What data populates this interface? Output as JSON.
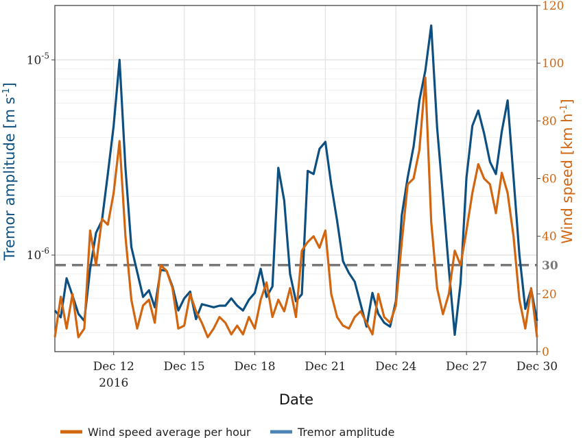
{
  "chart_data": {
    "type": "line",
    "xlabel": "Date",
    "ylabel_left_base": "Tremor amplitude [m s",
    "ylabel_left_exp": "-1",
    "ylabel_left_end": "]",
    "ylabel_right_base": "Wind speed [km h",
    "ylabel_right_exp": "-1",
    "ylabel_right_end": "]",
    "x_range": [
      "2016-12-09T12:00",
      "2016-12-30T00:00"
    ],
    "x_ticks": [
      {
        "date": "2016-12-12",
        "label": "Dec 12",
        "sublabel": "2016"
      },
      {
        "date": "2016-12-15",
        "label": "Dec 15",
        "sublabel": ""
      },
      {
        "date": "2016-12-18",
        "label": "Dec 18",
        "sublabel": ""
      },
      {
        "date": "2016-12-21",
        "label": "Dec 21",
        "sublabel": ""
      },
      {
        "date": "2016-12-24",
        "label": "Dec 24",
        "sublabel": ""
      },
      {
        "date": "2016-12-27",
        "label": "Dec 27",
        "sublabel": ""
      },
      {
        "date": "2016-12-30",
        "label": "Dec 30",
        "sublabel": ""
      }
    ],
    "left_axis": {
      "scale": "log",
      "range": [
        3.2e-07,
        1.9e-05
      ],
      "ticks": [
        {
          "value": 1e-06,
          "mantissa": "10",
          "exp": "-6"
        },
        {
          "value": 1e-05,
          "mantissa": "10",
          "exp": "-5"
        }
      ]
    },
    "right_axis": {
      "scale": "linear",
      "range": [
        0,
        120
      ],
      "ticks": [
        0,
        20,
        40,
        60,
        80,
        100,
        120
      ]
    },
    "threshold": {
      "value": 30,
      "label": "30",
      "color": "#777777"
    },
    "colors": {
      "tremor": "#0d4f80",
      "wind": "#d2650f",
      "tremor_legend": "#4a82b4",
      "axis_left": "#0d4f80",
      "axis_right": "#d2650f"
    },
    "series": [
      {
        "name": "Tremor amplitude",
        "axis": "left",
        "x": [
          "2016-12-09T12:00",
          "2016-12-09T18:00",
          "2016-12-10T00:00",
          "2016-12-10T06:00",
          "2016-12-10T12:00",
          "2016-12-10T18:00",
          "2016-12-11T00:00",
          "2016-12-11T06:00",
          "2016-12-11T12:00",
          "2016-12-11T18:00",
          "2016-12-12T00:00",
          "2016-12-12T06:00",
          "2016-12-12T12:00",
          "2016-12-12T18:00",
          "2016-12-13T00:00",
          "2016-12-13T06:00",
          "2016-12-13T12:00",
          "2016-12-13T18:00",
          "2016-12-14T00:00",
          "2016-12-14T06:00",
          "2016-12-14T12:00",
          "2016-12-14T18:00",
          "2016-12-15T00:00",
          "2016-12-15T06:00",
          "2016-12-15T12:00",
          "2016-12-15T18:00",
          "2016-12-16T00:00",
          "2016-12-16T06:00",
          "2016-12-16T12:00",
          "2016-12-16T18:00",
          "2016-12-17T00:00",
          "2016-12-17T06:00",
          "2016-12-17T12:00",
          "2016-12-17T18:00",
          "2016-12-18T00:00",
          "2016-12-18T06:00",
          "2016-12-18T12:00",
          "2016-12-18T18:00",
          "2016-12-19T00:00",
          "2016-12-19T06:00",
          "2016-12-19T12:00",
          "2016-12-19T18:00",
          "2016-12-20T00:00",
          "2016-12-20T06:00",
          "2016-12-20T12:00",
          "2016-12-20T18:00",
          "2016-12-21T00:00",
          "2016-12-21T06:00",
          "2016-12-21T12:00",
          "2016-12-21T18:00",
          "2016-12-22T00:00",
          "2016-12-22T06:00",
          "2016-12-22T12:00",
          "2016-12-22T18:00",
          "2016-12-23T00:00",
          "2016-12-23T06:00",
          "2016-12-23T12:00",
          "2016-12-23T18:00",
          "2016-12-24T00:00",
          "2016-12-24T06:00",
          "2016-12-24T12:00",
          "2016-12-24T18:00",
          "2016-12-25T00:00",
          "2016-12-25T06:00",
          "2016-12-25T12:00",
          "2016-12-25T18:00",
          "2016-12-26T00:00",
          "2016-12-26T06:00",
          "2016-12-26T12:00",
          "2016-12-26T18:00",
          "2016-12-27T00:00",
          "2016-12-27T06:00",
          "2016-12-27T12:00",
          "2016-12-27T18:00",
          "2016-12-28T00:00",
          "2016-12-28T06:00",
          "2016-12-28T12:00",
          "2016-12-28T18:00",
          "2016-12-29T00:00",
          "2016-12-29T06:00",
          "2016-12-29T12:00",
          "2016-12-29T18:00",
          "2016-12-30T00:00"
        ],
        "values": [
          5.2e-07,
          4.8e-07,
          7.6e-07,
          6.2e-07,
          5e-07,
          4.6e-07,
          8.5e-07,
          1.3e-06,
          1.5e-06,
          2.6e-06,
          4.6e-06,
          1e-05,
          2.8e-06,
          1.1e-06,
          8.2e-07,
          6.1e-07,
          6.6e-07,
          5.4e-07,
          8.4e-07,
          8.3e-07,
          6.9e-07,
          5.2e-07,
          6e-07,
          6.5e-07,
          4.7e-07,
          5.6e-07,
          5.5e-07,
          5.4e-07,
          5.5e-07,
          5.5e-07,
          6e-07,
          5.5e-07,
          5.2e-07,
          5.9e-07,
          6.4e-07,
          8.5e-07,
          6.1e-07,
          6.9e-07,
          2.8e-06,
          1.9e-06,
          8e-07,
          5.8e-07,
          6.3e-07,
          2.7e-06,
          2.6e-06,
          3.5e-06,
          3.8e-06,
          2.3e-06,
          1.5e-06,
          9.3e-07,
          8.1e-07,
          7.3e-07,
          5.6e-07,
          4.3e-07,
          6.4e-07,
          5e-07,
          4.5e-07,
          4.3e-07,
          5.8e-07,
          1.6e-06,
          2.5e-06,
          3.6e-06,
          6.2e-06,
          8.8e-06,
          1.5e-05,
          4.5e-06,
          2e-06,
          8.5e-07,
          3.9e-07,
          7.2e-07,
          2.5e-06,
          4.6e-06,
          5.5e-06,
          4.2e-06,
          3e-06,
          2.6e-06,
          4.3e-06,
          6.2e-06,
          2.5e-06,
          1e-06,
          5.3e-07,
          6.7e-07,
          4.6e-07
        ]
      },
      {
        "name": "Wind speed average per hour",
        "axis": "right",
        "x": [
          "2016-12-09T12:00",
          "2016-12-09T18:00",
          "2016-12-10T00:00",
          "2016-12-10T06:00",
          "2016-12-10T12:00",
          "2016-12-10T18:00",
          "2016-12-11T00:00",
          "2016-12-11T06:00",
          "2016-12-11T12:00",
          "2016-12-11T18:00",
          "2016-12-12T00:00",
          "2016-12-12T06:00",
          "2016-12-12T12:00",
          "2016-12-12T18:00",
          "2016-12-13T00:00",
          "2016-12-13T06:00",
          "2016-12-13T12:00",
          "2016-12-13T18:00",
          "2016-12-14T00:00",
          "2016-12-14T06:00",
          "2016-12-14T12:00",
          "2016-12-14T18:00",
          "2016-12-15T00:00",
          "2016-12-15T06:00",
          "2016-12-15T12:00",
          "2016-12-15T18:00",
          "2016-12-16T00:00",
          "2016-12-16T06:00",
          "2016-12-16T12:00",
          "2016-12-16T18:00",
          "2016-12-17T00:00",
          "2016-12-17T06:00",
          "2016-12-17T12:00",
          "2016-12-17T18:00",
          "2016-12-18T00:00",
          "2016-12-18T06:00",
          "2016-12-18T12:00",
          "2016-12-18T18:00",
          "2016-12-19T00:00",
          "2016-12-19T06:00",
          "2016-12-19T12:00",
          "2016-12-19T18:00",
          "2016-12-20T00:00",
          "2016-12-20T06:00",
          "2016-12-20T12:00",
          "2016-12-20T18:00",
          "2016-12-21T00:00",
          "2016-12-21T06:00",
          "2016-12-21T12:00",
          "2016-12-21T18:00",
          "2016-12-22T00:00",
          "2016-12-22T06:00",
          "2016-12-22T12:00",
          "2016-12-22T18:00",
          "2016-12-23T00:00",
          "2016-12-23T06:00",
          "2016-12-23T12:00",
          "2016-12-23T18:00",
          "2016-12-24T00:00",
          "2016-12-24T06:00",
          "2016-12-24T12:00",
          "2016-12-24T18:00",
          "2016-12-25T00:00",
          "2016-12-25T06:00",
          "2016-12-25T12:00",
          "2016-12-25T18:00",
          "2016-12-26T00:00",
          "2016-12-26T06:00",
          "2016-12-26T12:00",
          "2016-12-26T18:00",
          "2016-12-27T00:00",
          "2016-12-27T06:00",
          "2016-12-27T12:00",
          "2016-12-27T18:00",
          "2016-12-28T00:00",
          "2016-12-28T06:00",
          "2016-12-28T12:00",
          "2016-12-28T18:00",
          "2016-12-29T00:00",
          "2016-12-29T06:00",
          "2016-12-29T12:00",
          "2016-12-29T18:00",
          "2016-12-30T00:00"
        ],
        "values": [
          5,
          19,
          8,
          20,
          5,
          8,
          42,
          30,
          46,
          44,
          55,
          73,
          40,
          18,
          8,
          16,
          18,
          10,
          30,
          28,
          22,
          8,
          9,
          20,
          14,
          10,
          5,
          8,
          12,
          10,
          6,
          9,
          6,
          12,
          8,
          18,
          24,
          12,
          18,
          14,
          22,
          12,
          35,
          38,
          40,
          36,
          42,
          20,
          12,
          9,
          8,
          12,
          14,
          10,
          6,
          20,
          12,
          10,
          16,
          38,
          58,
          60,
          70,
          95,
          45,
          22,
          13,
          20,
          35,
          30,
          42,
          55,
          65,
          60,
          58,
          48,
          62,
          55,
          40,
          18,
          8,
          22,
          5
        ]
      }
    ]
  },
  "legend": {
    "items": [
      {
        "label": "Wind speed average per hour",
        "color": "#d2650f"
      },
      {
        "label": "Tremor amplitude",
        "color": "#4a82b4"
      }
    ]
  }
}
